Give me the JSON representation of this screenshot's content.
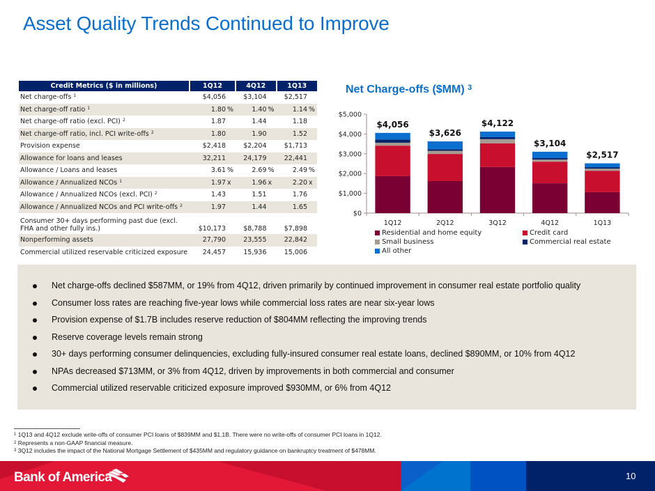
{
  "title": "Asset Quality Trends Continued to Improve",
  "table": {
    "header": [
      "Credit Metrics ($ in millions)",
      "1Q12",
      "4Q12",
      "1Q13"
    ],
    "rows": [
      {
        "label": "Net charge-offs",
        "sup": "1",
        "values": [
          "$4,056",
          "$3,104",
          "$2,517"
        ],
        "unit": "",
        "shade": false
      },
      {
        "label": "Net charge-off ratio",
        "sup": "1",
        "values": [
          "1.80",
          "1.40",
          "1.14"
        ],
        "unit": "%",
        "shade": true
      },
      {
        "label": "Net charge-off ratio (excl. PCI)",
        "sup": "2",
        "values": [
          "1.87",
          "1.44",
          "1.18"
        ],
        "unit": "",
        "shade": false
      },
      {
        "label": "Net charge-off ratio, incl. PCI write-offs",
        "sup": "2",
        "values": [
          "1.80",
          "1.90",
          "1.52"
        ],
        "unit": "",
        "shade": true
      },
      {
        "label": "Provision expense",
        "sup": "",
        "values": [
          "$2,418",
          "$2,204",
          "$1,713"
        ],
        "unit": "",
        "shade": false
      },
      {
        "label": "Allowance for loans and leases",
        "sup": "",
        "values": [
          "32,211",
          "24,179",
          "22,441"
        ],
        "unit": "",
        "shade": true
      },
      {
        "label": "Allowance / Loans and leases",
        "sup": "",
        "values": [
          "3.61",
          "2.69",
          "2.49"
        ],
        "unit": "%",
        "shade": false
      },
      {
        "label": "Allowance / Annualized NCOs",
        "sup": "1",
        "values": [
          "1.97",
          "1.96",
          "2.20"
        ],
        "unit": "x",
        "shade": true
      },
      {
        "label": "Allowance / Annualized NCOs (excl. PCI)",
        "sup": "2",
        "values": [
          "1.43",
          "1.51",
          "1.76"
        ],
        "unit": "",
        "shade": false
      },
      {
        "label": "Allowance / Annualized NCOs and PCI write-offs",
        "sup": "2",
        "values": [
          "1.97",
          "1.44",
          "1.65"
        ],
        "unit": "",
        "shade": true
      },
      {
        "label": "Consumer 30+ days performing past due (excl. FHA and other fully ins.)",
        "sup": "",
        "values": [
          "$10,173",
          "$8,788",
          "$7,898"
        ],
        "unit": "",
        "shade": false,
        "tall": true
      },
      {
        "label": "Nonperforming assets",
        "sup": "",
        "values": [
          "27,790",
          "23,555",
          "22,842"
        ],
        "unit": "",
        "shade": true
      },
      {
        "label": "Commercial utilized reservable criticized exposure",
        "sup": "",
        "values": [
          "24,457",
          "15,936",
          "15,006"
        ],
        "unit": "",
        "shade": false
      }
    ]
  },
  "chart_title": "Net Charge-offs ($MM)",
  "chart_title_sup": "3",
  "chart_data": {
    "type": "bar",
    "stacked": true,
    "title": "Net Charge-offs ($MM)",
    "xlabel": "",
    "ylabel": "",
    "categories": [
      "1Q12",
      "2Q12",
      "3Q12",
      "4Q12",
      "1Q13"
    ],
    "totals_labels": [
      "$4,056",
      "$3,626",
      "$4,122",
      "$3,104",
      "$2,517"
    ],
    "totals": [
      4056,
      3626,
      4122,
      3104,
      2517
    ],
    "ylim": [
      0,
      5000
    ],
    "yticks": [
      0,
      1000,
      2000,
      3000,
      4000,
      5000
    ],
    "ytick_labels": [
      "$0",
      "$1,000",
      "$2,000",
      "$3,000",
      "$4,000",
      "$5,000"
    ],
    "grid": false,
    "legend_position": "bottom",
    "series": [
      {
        "name": "Residential and home equity",
        "color": "#7a0033",
        "values": [
          1870,
          1620,
          2330,
          1510,
          1060
        ]
      },
      {
        "name": "Credit card",
        "color": "#c8102e",
        "values": [
          1540,
          1370,
          1200,
          1090,
          1080
        ]
      },
      {
        "name": "Small business",
        "color": "#a59b91",
        "values": [
          150,
          160,
          210,
          110,
          110
        ]
      },
      {
        "name": "Commercial real estate",
        "color": "#012169",
        "values": [
          160,
          80,
          100,
          70,
          70
        ]
      },
      {
        "name": "All other",
        "color": "#0a6fcf",
        "values": [
          336,
          396,
          282,
          324,
          197
        ]
      }
    ]
  },
  "bullets": [
    "Net charge-offs declined $587MM, or 19% from 4Q12, driven primarily by continued improvement in consumer real estate portfolio quality",
    "Consumer loss rates are reaching five-year lows while commercial loss rates are near six-year lows",
    "Provision expense of $1.7B includes reserve reduction of $804MM reflecting the improving trends",
    "Reserve coverage levels remain strong",
    "30+ days performing consumer delinquencies, excluding fully-insured consumer real estate loans, declined $890MM, or 10% from 4Q12",
    "NPAs decreased $713MM, or 3% from 4Q12, driven by improvements in both commercial and consumer",
    "Commercial utilized reservable criticized exposure improved $930MM, or 6% from 4Q12"
  ],
  "footnotes": [
    {
      "sup": "1",
      "text": "1Q13 and 4Q12 exclude write-offs of consumer PCI loans of $839MM and $1.1B. There were no write-offs of consumer PCI loans in 1Q12."
    },
    {
      "sup": "2",
      "text": "Represents a non-GAAP financial measure."
    },
    {
      "sup": "3",
      "text": "3Q12 includes the impact of the National Mortgage Settlement of $435MM and regulatory guidance on bankruptcy treatment of $478MM."
    }
  ],
  "footer": {
    "logo_text": "Bank of America",
    "logo_icon": "flag-icon",
    "page_number": "10"
  }
}
